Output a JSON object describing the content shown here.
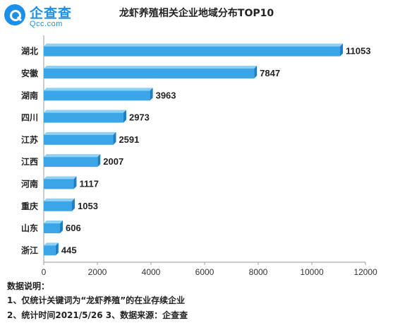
{
  "logo": {
    "text_cn": "企查查",
    "text_en": "Qcc.com"
  },
  "chart_data": {
    "type": "bar",
    "orientation": "horizontal",
    "title": "龙虾养殖相关企业地域分布TOP10",
    "categories": [
      "湖北",
      "安徽",
      "湖南",
      "四川",
      "江苏",
      "江西",
      "河南",
      "重庆",
      "山东",
      "浙江"
    ],
    "values": [
      11053,
      7847,
      3963,
      2973,
      2591,
      2007,
      1117,
      1053,
      606,
      445
    ],
    "xlim": [
      0,
      12000
    ],
    "xticks": [
      0,
      2000,
      4000,
      6000,
      8000,
      10000,
      12000
    ],
    "xlabel": "",
    "ylabel": "",
    "grid": false,
    "bar_color": "#3aa6e8",
    "bar_top_color": "#8fd0f5",
    "bar_end_color": "#1f7fc4"
  },
  "notes": {
    "heading": "数据说明：",
    "line1": "1、仅统计关键词为“龙虾养殖”的在业存续企业",
    "line2": "2、统计时间2021/5/26   3、数据来源：企查查"
  }
}
